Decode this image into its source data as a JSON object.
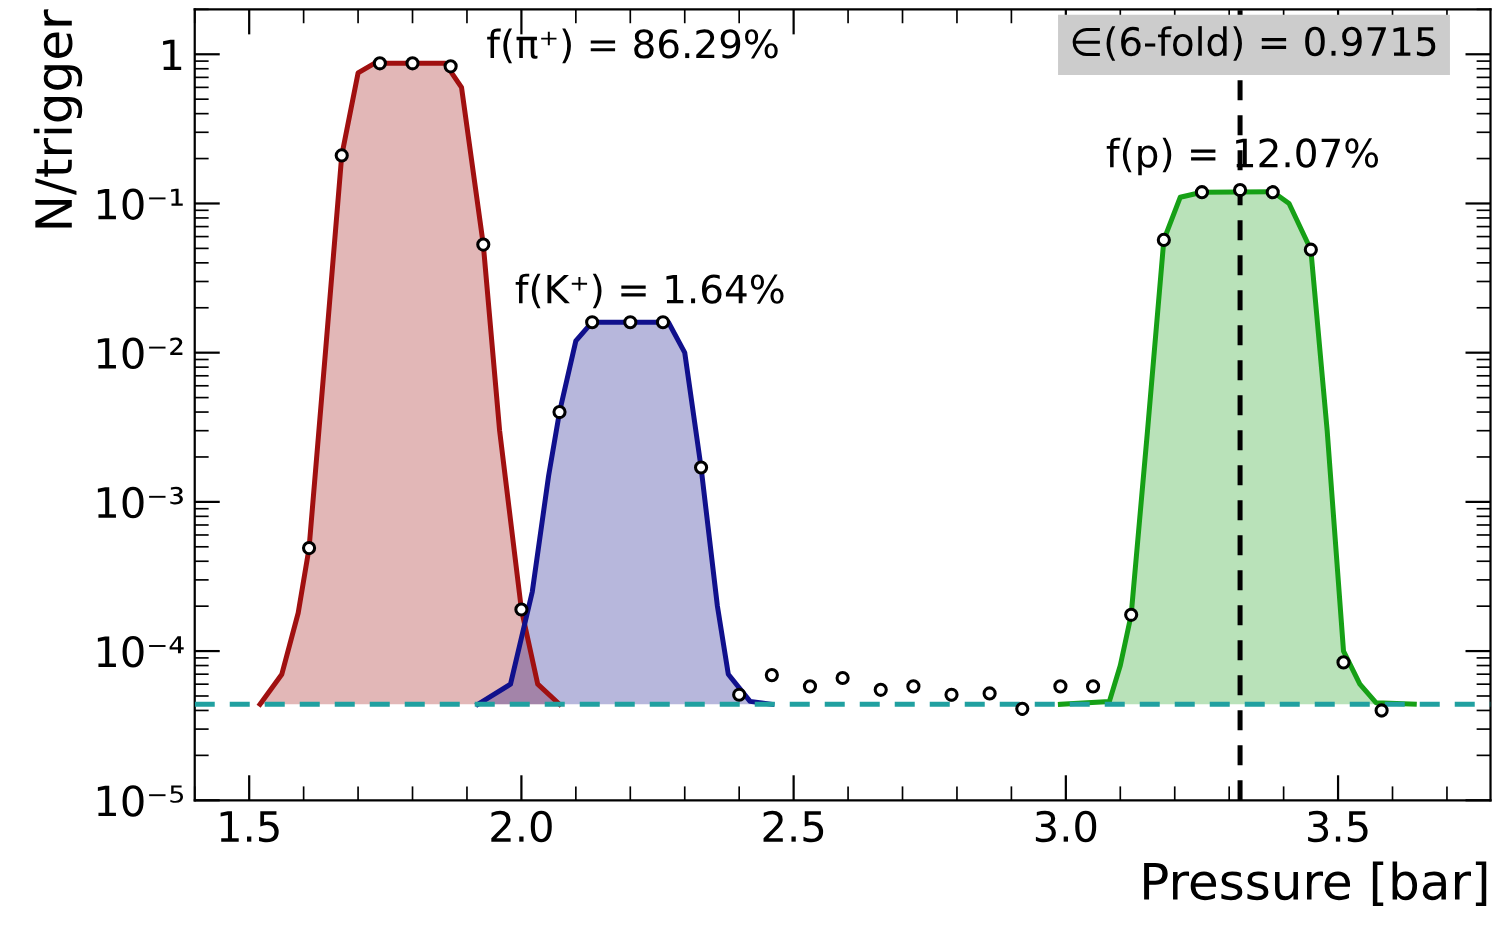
{
  "chart_data": {
    "type": "scatter",
    "xlabel": "Pressure [bar]",
    "ylabel": "N/trigger",
    "log": "y",
    "xlim": [
      1.4,
      3.78
    ],
    "ylim": [
      1e-05,
      2
    ],
    "xticks": [
      1.5,
      {
        "value": 2,
        "label": "2.0"
      },
      2.5,
      {
        "value": 3,
        "label": "3.0"
      },
      3.5
    ],
    "yticks": [
      {
        "value": 1e-05,
        "label": "10⁻⁵"
      },
      {
        "value": 0.0001,
        "label": "10⁻⁴"
      },
      {
        "value": 0.001,
        "label": "10⁻³"
      },
      {
        "value": 0.01,
        "label": "10⁻²"
      },
      {
        "value": 0.1,
        "label": "10⁻¹"
      },
      1
    ],
    "grid": false,
    "legend": false,
    "series": [
      {
        "type": "area",
        "marker": "none",
        "color": "#a01010",
        "x": [
          1.52,
          1.56,
          1.59,
          1.61,
          1.64,
          1.67,
          1.7,
          1.73,
          1.86,
          1.89,
          1.93,
          1.96,
          2.0,
          2.03,
          2.07
        ],
        "values": [
          4.4e-05,
          7e-05,
          0.00018,
          0.00049,
          0.01,
          0.21,
          0.75,
          0.87,
          0.87,
          0.6,
          0.053,
          0.003,
          0.00019,
          6e-05,
          4.4e-05
        ]
      },
      {
        "type": "area",
        "marker": "none",
        "color": "#10108c",
        "x": [
          1.92,
          1.98,
          2.02,
          2.05,
          2.07,
          2.1,
          2.13,
          2.27,
          2.3,
          2.33,
          2.36,
          2.38,
          2.42,
          2.46
        ],
        "values": [
          4.4e-05,
          6e-05,
          0.00025,
          0.0015,
          0.004,
          0.012,
          0.016,
          0.016,
          0.01,
          0.0017,
          0.0002,
          7e-05,
          4.6e-05,
          4.4e-05
        ]
      },
      {
        "type": "area",
        "marker": "none",
        "color": "#16a016",
        "x": [
          2.99,
          3.08,
          3.1,
          3.12,
          3.15,
          3.18,
          3.21,
          3.25,
          3.38,
          3.41,
          3.45,
          3.48,
          3.51,
          3.54,
          3.57,
          3.64
        ],
        "values": [
          4.4e-05,
          4.6e-05,
          8e-05,
          0.000175,
          0.003,
          0.057,
          0.11,
          0.119,
          0.12,
          0.1,
          0.049,
          0.003,
          0.0001,
          6e-05,
          4.5e-05,
          4.4e-05
        ]
      },
      {
        "marker": "circle",
        "color": "#000000",
        "x": [
          1.61,
          1.67,
          1.74,
          1.8,
          1.87,
          1.93,
          2.0,
          2.07,
          2.13,
          2.2,
          2.26,
          2.33,
          2.4,
          2.46,
          2.53,
          2.59,
          2.66,
          2.72,
          2.79,
          2.86,
          2.92,
          2.99,
          3.05,
          3.12,
          3.18,
          3.25,
          3.32,
          3.38,
          3.45,
          3.51,
          3.58
        ],
        "values": [
          0.00049,
          0.21,
          0.87,
          0.87,
          0.83,
          0.053,
          0.00019,
          0.004,
          0.016,
          0.016,
          0.016,
          0.0017,
          5.1e-05,
          6.9e-05,
          5.8e-05,
          6.6e-05,
          5.5e-05,
          5.8e-05,
          5.1e-05,
          5.2e-05,
          4.1e-05,
          5.8e-05,
          5.8e-05,
          0.000175,
          0.057,
          0.119,
          0.123,
          0.119,
          0.049,
          8.4e-05,
          4e-05
        ],
        "errors": [
          null,
          null,
          null,
          null,
          null,
          null,
          null,
          null,
          null,
          null,
          null,
          null,
          4e-06,
          5e-06,
          5e-06,
          5e-06,
          5e-06,
          5e-06,
          5e-06,
          5e-06,
          4e-06,
          5e-06,
          5e-06,
          8e-06,
          null,
          null,
          null,
          null,
          null,
          6e-06,
          4e-06
        ]
      }
    ],
    "ref_lines": [
      {
        "axis": "y",
        "value": 4.4e-05,
        "color": "#20a0a0",
        "line_style": "dashed"
      },
      {
        "axis": "x",
        "value": 3.32,
        "color": "#000000",
        "line_style": "dashed"
      }
    ],
    "annotations": [
      "f(π⁺) = 86.29%",
      "f(K⁺) = 1.64%",
      "f(p) = 12.07%",
      "∈(6-fold) = 0.9715"
    ]
  }
}
